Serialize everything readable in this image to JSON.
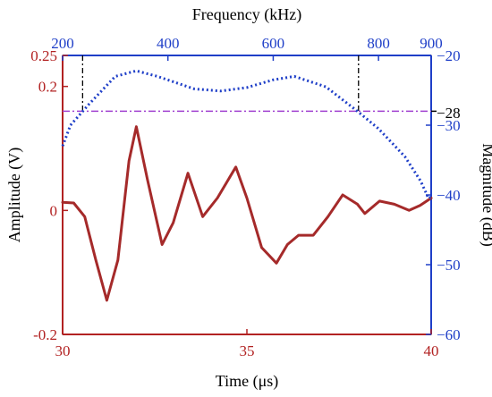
{
  "chart_data": {
    "type": "line",
    "title": "",
    "colors": {
      "amplitude": "#a52a2a",
      "magnitude": "#1f3fc8",
      "threshold": "#a040d0",
      "bandwidth_markers": "#000000",
      "left_axis": "#b22222",
      "right_axis": "#1f3fc8"
    },
    "x_bottom": {
      "label": "Time (μs)",
      "range": [
        30,
        40
      ],
      "ticks": [
        30,
        35,
        40
      ]
    },
    "x_top": {
      "label": "Frequency (kHz)",
      "range": [
        200,
        900
      ],
      "ticks": [
        200,
        400,
        600,
        800,
        900
      ]
    },
    "y_left": {
      "label": "Amplitude (V)",
      "range": [
        -0.2,
        0.25
      ],
      "ticks": [
        -0.2,
        0,
        0.2,
        0.25
      ]
    },
    "y_right": {
      "label": "Magnitude (dB)",
      "range": [
        -60,
        -20
      ],
      "ticks": [
        -20,
        -30,
        -40,
        -50,
        -60
      ]
    },
    "series": [
      {
        "axis": "bottom-left",
        "style": "solid",
        "points": [
          [
            30.0,
            0.013
          ],
          [
            30.3,
            0.012
          ],
          [
            30.6,
            -0.01
          ],
          [
            30.9,
            -0.08
          ],
          [
            31.2,
            -0.145
          ],
          [
            31.5,
            -0.08
          ],
          [
            31.8,
            0.08
          ],
          [
            32.0,
            0.135
          ],
          [
            32.3,
            0.05
          ],
          [
            32.7,
            -0.055
          ],
          [
            33.0,
            -0.02
          ],
          [
            33.4,
            0.06
          ],
          [
            33.8,
            -0.01
          ],
          [
            34.2,
            0.02
          ],
          [
            34.7,
            0.07
          ],
          [
            35.0,
            0.02
          ],
          [
            35.4,
            -0.06
          ],
          [
            35.8,
            -0.085
          ],
          [
            36.1,
            -0.055
          ],
          [
            36.4,
            -0.04
          ],
          [
            36.8,
            -0.04
          ],
          [
            37.2,
            -0.01
          ],
          [
            37.6,
            0.025
          ],
          [
            38.0,
            0.01
          ],
          [
            38.2,
            -0.005
          ],
          [
            38.6,
            0.015
          ],
          [
            39.0,
            0.01
          ],
          [
            39.4,
            0.0
          ],
          [
            39.7,
            0.008
          ],
          [
            40.0,
            0.02
          ]
        ]
      },
      {
        "axis": "top-right",
        "style": "dotted",
        "points": [
          [
            200,
            -33.0
          ],
          [
            215,
            -30.0
          ],
          [
            250,
            -27.0
          ],
          [
            300,
            -23.0
          ],
          [
            340,
            -22.2
          ],
          [
            380,
            -23.0
          ],
          [
            450,
            -24.8
          ],
          [
            500,
            -25.1
          ],
          [
            550,
            -24.6
          ],
          [
            600,
            -23.5
          ],
          [
            640,
            -23.0
          ],
          [
            700,
            -24.5
          ],
          [
            760,
            -28.0
          ],
          [
            800,
            -30.5
          ],
          [
            850,
            -34.5
          ],
          [
            880,
            -38.0
          ],
          [
            895,
            -40.5
          ],
          [
            900,
            -40.3
          ]
        ]
      }
    ],
    "reference_lines": {
      "threshold_db": -28,
      "bandwidth_khz": [
        238,
        762
      ]
    },
    "annotations": [
      "-28"
    ]
  }
}
